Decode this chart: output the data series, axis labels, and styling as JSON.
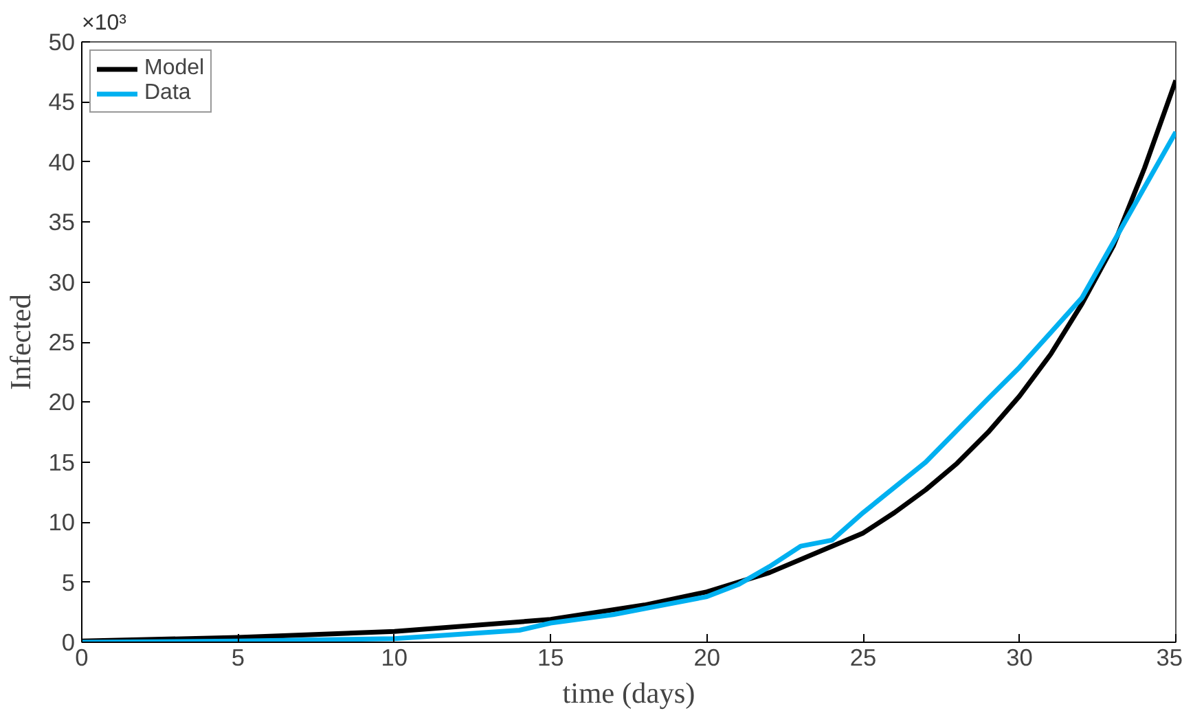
{
  "chart_data": {
    "type": "line",
    "xlabel": "time (days)",
    "ylabel": "Infected",
    "annotations": [
      "×10³"
    ],
    "xlim": [
      0,
      35
    ],
    "ylim": [
      0,
      50
    ],
    "xticks": [
      0,
      5,
      10,
      15,
      20,
      25,
      30,
      35
    ],
    "yticks": [
      0,
      5,
      10,
      15,
      20,
      25,
      30,
      35,
      40,
      45,
      50
    ],
    "grid": false,
    "legend": "top left",
    "marker": "none",
    "line_style": "solid",
    "series": [
      {
        "name": "Model",
        "color": "#000000",
        "x": [
          0,
          5,
          10,
          15,
          18,
          20,
          22,
          24,
          25,
          26,
          27,
          28,
          29,
          30,
          31,
          32,
          33,
          34,
          35
        ],
        "values": [
          0.1,
          0.4,
          0.9,
          1.9,
          3.1,
          4.2,
          5.8,
          8.0,
          9.1,
          10.8,
          12.7,
          14.9,
          17.5,
          20.5,
          24.0,
          28.2,
          33.0,
          39.5,
          46.8
        ]
      },
      {
        "name": "Data",
        "color": "#00b0f0",
        "x": [
          0,
          5,
          10,
          14,
          15,
          17,
          18,
          20,
          21,
          22,
          23,
          24,
          25,
          27,
          29,
          30,
          32,
          35
        ],
        "values": [
          0.0,
          0.1,
          0.3,
          1.0,
          1.6,
          2.3,
          2.8,
          3.8,
          4.8,
          6.3,
          8.0,
          8.5,
          10.8,
          15.0,
          20.3,
          22.9,
          28.7,
          42.5
        ]
      }
    ]
  }
}
